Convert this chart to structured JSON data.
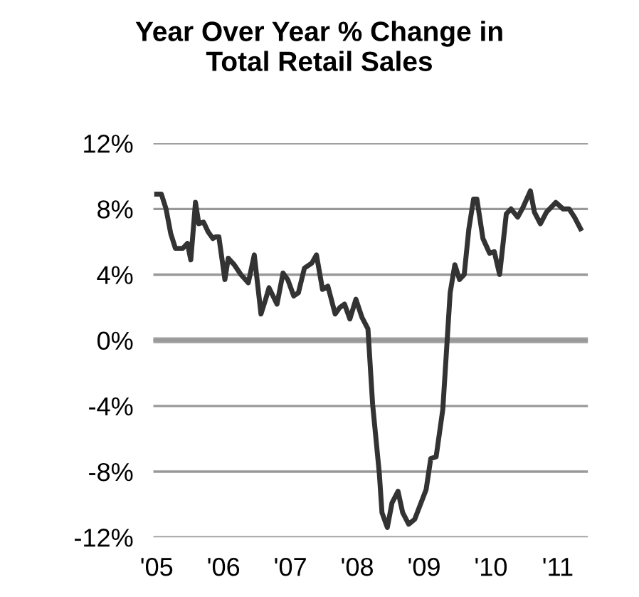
{
  "chart_data": {
    "type": "line",
    "title": "Year Over Year % Change in\nTotal Retail Sales",
    "x": [
      2005.0,
      2005.07,
      2005.14,
      2005.21,
      2005.28,
      2005.39,
      2005.46,
      2005.51,
      2005.58,
      2005.63,
      2005.7,
      2005.77,
      2005.84,
      2005.88,
      2005.93,
      2006.02,
      2006.07,
      2006.16,
      2006.26,
      2006.37,
      2006.46,
      2006.56,
      2006.63,
      2006.68,
      2006.8,
      2006.89,
      2006.96,
      2007.05,
      2007.12,
      2007.21,
      2007.32,
      2007.39,
      2007.48,
      2007.56,
      2007.67,
      2007.74,
      2007.81,
      2007.89,
      2007.98,
      2008.07,
      2008.16,
      2008.23,
      2008.33,
      2008.37,
      2008.45,
      2008.52,
      2008.61,
      2008.68,
      2008.77,
      2008.86,
      2009.03,
      2009.1,
      2009.18,
      2009.28,
      2009.39,
      2009.46,
      2009.53,
      2009.6,
      2009.67,
      2009.74,
      2009.79,
      2009.88,
      2009.98,
      2010.05,
      2010.13,
      2010.23,
      2010.3,
      2010.4,
      2010.48,
      2010.59,
      2010.65,
      2010.74,
      2010.83,
      2010.97,
      2011.08,
      2011.17,
      2011.25,
      2011.34
    ],
    "series": [
      {
        "color": "#333333",
        "values": [
          8.9,
          8.9,
          8.0,
          6.5,
          5.6,
          5.6,
          5.9,
          4.9,
          8.4,
          7.1,
          7.2,
          6.6,
          6.2,
          6.3,
          6.3,
          3.7,
          5.0,
          4.6,
          4.0,
          3.5,
          5.2,
          1.6,
          2.5,
          3.2,
          2.2,
          4.1,
          3.7,
          2.7,
          2.9,
          4.4,
          4.7,
          5.2,
          3.1,
          3.3,
          1.6,
          2.0,
          2.2,
          1.3,
          2.5,
          1.4,
          0.7,
          -3.9,
          -8.1,
          -10.5,
          -11.4,
          -9.9,
          -9.2,
          -10.5,
          -11.2,
          -10.9,
          -9.1,
          -7.2,
          -7.1,
          -4.2,
          2.9,
          4.6,
          3.7,
          4.0,
          6.8,
          8.6,
          8.6,
          6.2,
          5.3,
          5.4,
          4.0,
          7.7,
          8.0,
          7.5,
          8.1,
          9.1,
          7.8,
          7.1,
          7.8,
          8.4,
          8.0,
          8.0,
          7.5,
          6.8
        ]
      }
    ],
    "xlim": [
      2004.95,
      2011.45
    ],
    "xticks": [
      {
        "value": 2005,
        "label": "'05"
      },
      {
        "value": 2006,
        "label": "'06"
      },
      {
        "value": 2007,
        "label": "'07"
      },
      {
        "value": 2008,
        "label": "'08"
      },
      {
        "value": 2009,
        "label": "'09"
      },
      {
        "value": 2010,
        "label": "'10"
      },
      {
        "value": 2011,
        "label": "'11"
      }
    ],
    "ylim": [
      -12,
      12
    ],
    "yticks": [
      {
        "value": -12,
        "label": "-12%"
      },
      {
        "value": -8,
        "label": "-8%"
      },
      {
        "value": -4,
        "label": "-4%"
      },
      {
        "value": 0,
        "label": "0%"
      },
      {
        "value": 4,
        "label": "4%"
      },
      {
        "value": 8,
        "label": "8%"
      },
      {
        "value": 12,
        "label": "12%"
      }
    ],
    "grid": "y",
    "legend": false,
    "line_style": "solid",
    "ref_lines": [
      {
        "axis": "y",
        "value": 0,
        "color": "#a0a0a0"
      }
    ]
  }
}
